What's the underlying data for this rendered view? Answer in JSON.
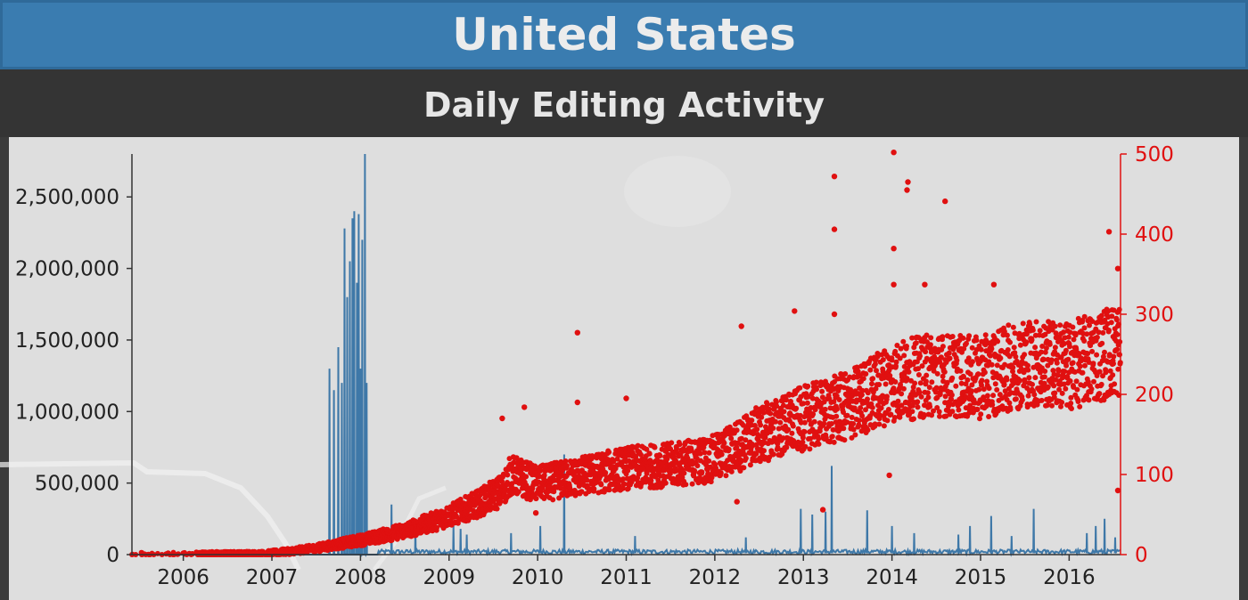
{
  "page": {
    "title": "United States",
    "subtitle": "Daily Editing Activity"
  },
  "colors": {
    "header": "#3a7cb0",
    "left_series": "#3e78a8",
    "right_series": "#e01010",
    "plot_bg": "#dedede"
  },
  "chart_data": {
    "type": "line",
    "title": "Daily Editing Activity",
    "x_ticks": [
      "2006",
      "2007",
      "2008",
      "2009",
      "2010",
      "2011",
      "2012",
      "2013",
      "2014",
      "2015",
      "2016"
    ],
    "x_range": [
      2005.42,
      2016.58
    ],
    "y_left_ticks": [
      "0",
      "500,000",
      "1,000,000",
      "1,500,000",
      "2,000,000",
      "2,500,000"
    ],
    "y_left_range": [
      0,
      2800000
    ],
    "y_right_ticks": [
      "0",
      "100",
      "200",
      "300",
      "400",
      "500"
    ],
    "y_right_range": [
      0,
      500
    ],
    "series": [
      {
        "axis": "left",
        "style": "line",
        "baseline": 10000,
        "spikes": [
          {
            "x": 2007.65,
            "y": 1300000
          },
          {
            "x": 2007.7,
            "y": 1150000
          },
          {
            "x": 2007.75,
            "y": 1450000
          },
          {
            "x": 2007.79,
            "y": 1200000
          },
          {
            "x": 2007.82,
            "y": 2280000
          },
          {
            "x": 2007.85,
            "y": 1800000
          },
          {
            "x": 2007.88,
            "y": 2050000
          },
          {
            "x": 2007.91,
            "y": 2350000
          },
          {
            "x": 2007.93,
            "y": 2400000
          },
          {
            "x": 2007.96,
            "y": 1900000
          },
          {
            "x": 2007.98,
            "y": 2380000
          },
          {
            "x": 2008.0,
            "y": 1300000
          },
          {
            "x": 2008.02,
            "y": 2200000
          },
          {
            "x": 2008.05,
            "y": 2800000
          },
          {
            "x": 2008.07,
            "y": 1200000
          },
          {
            "x": 2008.35,
            "y": 350000
          },
          {
            "x": 2008.62,
            "y": 200000
          },
          {
            "x": 2009.05,
            "y": 200000
          },
          {
            "x": 2009.13,
            "y": 180000
          },
          {
            "x": 2009.2,
            "y": 140000
          },
          {
            "x": 2009.7,
            "y": 150000
          },
          {
            "x": 2010.03,
            "y": 200000
          },
          {
            "x": 2010.3,
            "y": 700000
          },
          {
            "x": 2011.1,
            "y": 130000
          },
          {
            "x": 2012.35,
            "y": 120000
          },
          {
            "x": 2012.97,
            "y": 320000
          },
          {
            "x": 2013.1,
            "y": 280000
          },
          {
            "x": 2013.25,
            "y": 300000
          },
          {
            "x": 2013.32,
            "y": 620000
          },
          {
            "x": 2013.72,
            "y": 310000
          },
          {
            "x": 2014.0,
            "y": 200000
          },
          {
            "x": 2014.25,
            "y": 150000
          },
          {
            "x": 2014.75,
            "y": 140000
          },
          {
            "x": 2014.88,
            "y": 200000
          },
          {
            "x": 2015.12,
            "y": 270000
          },
          {
            "x": 2015.35,
            "y": 130000
          },
          {
            "x": 2015.6,
            "y": 320000
          },
          {
            "x": 2016.2,
            "y": 150000
          },
          {
            "x": 2016.3,
            "y": 200000
          },
          {
            "x": 2016.4,
            "y": 250000
          },
          {
            "x": 2016.52,
            "y": 120000
          }
        ]
      },
      {
        "axis": "right",
        "style": "scatter",
        "trend": [
          {
            "x": 2005.42,
            "y": 0
          },
          {
            "x": 2006.9,
            "y": 1
          },
          {
            "x": 2007.2,
            "y": 4
          },
          {
            "x": 2007.5,
            "y": 8
          },
          {
            "x": 2007.8,
            "y": 14
          },
          {
            "x": 2008.1,
            "y": 20
          },
          {
            "x": 2008.5,
            "y": 30
          },
          {
            "x": 2008.9,
            "y": 44
          },
          {
            "x": 2009.3,
            "y": 62
          },
          {
            "x": 2009.6,
            "y": 80
          },
          {
            "x": 2009.7,
            "y": 100
          },
          {
            "x": 2010.0,
            "y": 88
          },
          {
            "x": 2010.5,
            "y": 98
          },
          {
            "x": 2011.0,
            "y": 108
          },
          {
            "x": 2011.5,
            "y": 112
          },
          {
            "x": 2012.0,
            "y": 120
          },
          {
            "x": 2012.5,
            "y": 150
          },
          {
            "x": 2013.0,
            "y": 170
          },
          {
            "x": 2013.5,
            "y": 185
          },
          {
            "x": 2014.0,
            "y": 215
          },
          {
            "x": 2014.5,
            "y": 225
          },
          {
            "x": 2015.0,
            "y": 220
          },
          {
            "x": 2015.5,
            "y": 240
          },
          {
            "x": 2016.0,
            "y": 235
          },
          {
            "x": 2016.5,
            "y": 255
          }
        ],
        "outliers": [
          {
            "x": 2014.02,
            "y": 502
          },
          {
            "x": 2013.35,
            "y": 472
          },
          {
            "x": 2014.18,
            "y": 465
          },
          {
            "x": 2014.17,
            "y": 455
          },
          {
            "x": 2014.6,
            "y": 441
          },
          {
            "x": 2013.35,
            "y": 406
          },
          {
            "x": 2016.45,
            "y": 403
          },
          {
            "x": 2014.02,
            "y": 382
          },
          {
            "x": 2016.55,
            "y": 357
          },
          {
            "x": 2015.15,
            "y": 337
          },
          {
            "x": 2014.37,
            "y": 337
          },
          {
            "x": 2014.02,
            "y": 337
          },
          {
            "x": 2013.35,
            "y": 300
          },
          {
            "x": 2012.9,
            "y": 304
          },
          {
            "x": 2012.3,
            "y": 285
          },
          {
            "x": 2010.45,
            "y": 277
          },
          {
            "x": 2009.6,
            "y": 170
          },
          {
            "x": 2009.85,
            "y": 184
          },
          {
            "x": 2010.45,
            "y": 190
          },
          {
            "x": 2011.0,
            "y": 195
          },
          {
            "x": 2013.97,
            "y": 99
          },
          {
            "x": 2012.25,
            "y": 66
          },
          {
            "x": 2013.22,
            "y": 56
          },
          {
            "x": 2009.98,
            "y": 52
          },
          {
            "x": 2016.55,
            "y": 80
          }
        ]
      }
    ]
  }
}
